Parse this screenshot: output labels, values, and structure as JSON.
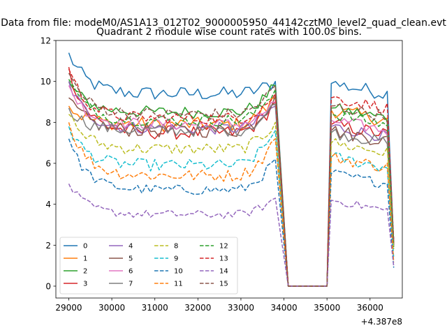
{
  "suptitle": "Data from file: modeM0/AS1A13_012T02_9000005950_44142cztM0_level2_quad_clean.evt",
  "chart_data": {
    "type": "line",
    "title": "Quadrant 2 module wise count rates with 100.0s bins.",
    "xlabel": "",
    "ylabel": "",
    "x_offset_label": "+4.387e8",
    "xlim": [
      28700,
      36750
    ],
    "ylim": [
      -0.58,
      12
    ],
    "x_ticks": [
      29000,
      30000,
      31000,
      32000,
      33000,
      34000,
      35000,
      36000
    ],
    "x_tick_labels": [
      "29000",
      "30000",
      "31000",
      "32000",
      "33000",
      "34000",
      "35000",
      "36000"
    ],
    "y_ticks": [
      0,
      2,
      4,
      6,
      8,
      10,
      12
    ],
    "y_tick_labels": [
      "0",
      "2",
      "4",
      "6",
      "8",
      "10",
      "12"
    ],
    "grid": false,
    "legend": {
      "placement": "lower-left",
      "columns": 4
    },
    "series": [
      {
        "name": "0",
        "color": "#1f77b4",
        "dash": "solid",
        "level": 9.4,
        "start": 11.4,
        "peak": 10.0,
        "resume": 9.9,
        "spread": 0.35
      },
      {
        "name": "1",
        "color": "#ff7f0e",
        "dash": "solid",
        "level": 7.9,
        "start": 8.8,
        "peak": 9.2,
        "resume": 8.6,
        "spread": 0.35
      },
      {
        "name": "2",
        "color": "#2ca02c",
        "dash": "solid",
        "level": 8.5,
        "start": 10.0,
        "peak": 9.8,
        "resume": 8.7,
        "spread": 0.3
      },
      {
        "name": "3",
        "color": "#d62728",
        "dash": "solid",
        "level": 7.5,
        "start": 10.7,
        "peak": 9.0,
        "resume": 7.9,
        "spread": 0.35
      },
      {
        "name": "4",
        "color": "#9467bd",
        "dash": "solid",
        "level": 7.7,
        "start": 10.0,
        "peak": 8.8,
        "resume": 7.8,
        "spread": 0.3
      },
      {
        "name": "5",
        "color": "#8c564b",
        "dash": "solid",
        "level": 7.6,
        "start": 9.2,
        "peak": 9.3,
        "resume": 7.6,
        "spread": 0.35
      },
      {
        "name": "6",
        "color": "#e377c2",
        "dash": "solid",
        "level": 7.9,
        "start": 9.8,
        "peak": 9.0,
        "resume": 8.1,
        "spread": 0.3
      },
      {
        "name": "7",
        "color": "#7f7f7f",
        "dash": "solid",
        "level": 7.6,
        "start": 8.7,
        "peak": 8.9,
        "resume": 7.5,
        "spread": 0.3
      },
      {
        "name": "8",
        "color": "#bcbd22",
        "dash": "dashed",
        "level": 6.7,
        "start": 8.4,
        "peak": 8.0,
        "resume": 7.0,
        "spread": 0.3
      },
      {
        "name": "9",
        "color": "#17becf",
        "dash": "dashed",
        "level": 5.9,
        "start": 7.8,
        "peak": 7.6,
        "resume": 6.3,
        "spread": 0.3
      },
      {
        "name": "10",
        "color": "#1f77b4",
        "dash": "dashed",
        "level": 4.7,
        "start": 7.2,
        "peak": 6.2,
        "resume": 5.5,
        "spread": 0.25
      },
      {
        "name": "11",
        "color": "#ff7f0e",
        "dash": "dashed",
        "level": 5.4,
        "start": 8.0,
        "peak": 7.2,
        "resume": 6.3,
        "spread": 0.3
      },
      {
        "name": "12",
        "color": "#2ca02c",
        "dash": "dashed",
        "level": 8.1,
        "start": 10.1,
        "peak": 9.6,
        "resume": 8.4,
        "spread": 0.3
      },
      {
        "name": "13",
        "color": "#d62728",
        "dash": "dashed",
        "level": 8.2,
        "start": 10.6,
        "peak": 9.4,
        "resume": 9.2,
        "spread": 0.3
      },
      {
        "name": "14",
        "color": "#9467bd",
        "dash": "dashed",
        "level": 3.5,
        "start": 5.0,
        "peak": 4.3,
        "resume": 4.2,
        "spread": 0.2
      },
      {
        "name": "15",
        "color": "#8c564b",
        "dash": "dashed",
        "level": 8.4,
        "start": 10.4,
        "peak": 9.8,
        "resume": 8.8,
        "spread": 0.3
      }
    ],
    "time_bins": {
      "first": 29000,
      "step": 100,
      "segment1_end": 33800,
      "gap_start": 34000,
      "gap_end": 35000,
      "segment2_start": 35100,
      "segment2_end": 36400,
      "final_x": 36550,
      "final_fraction": 0.25
    }
  }
}
